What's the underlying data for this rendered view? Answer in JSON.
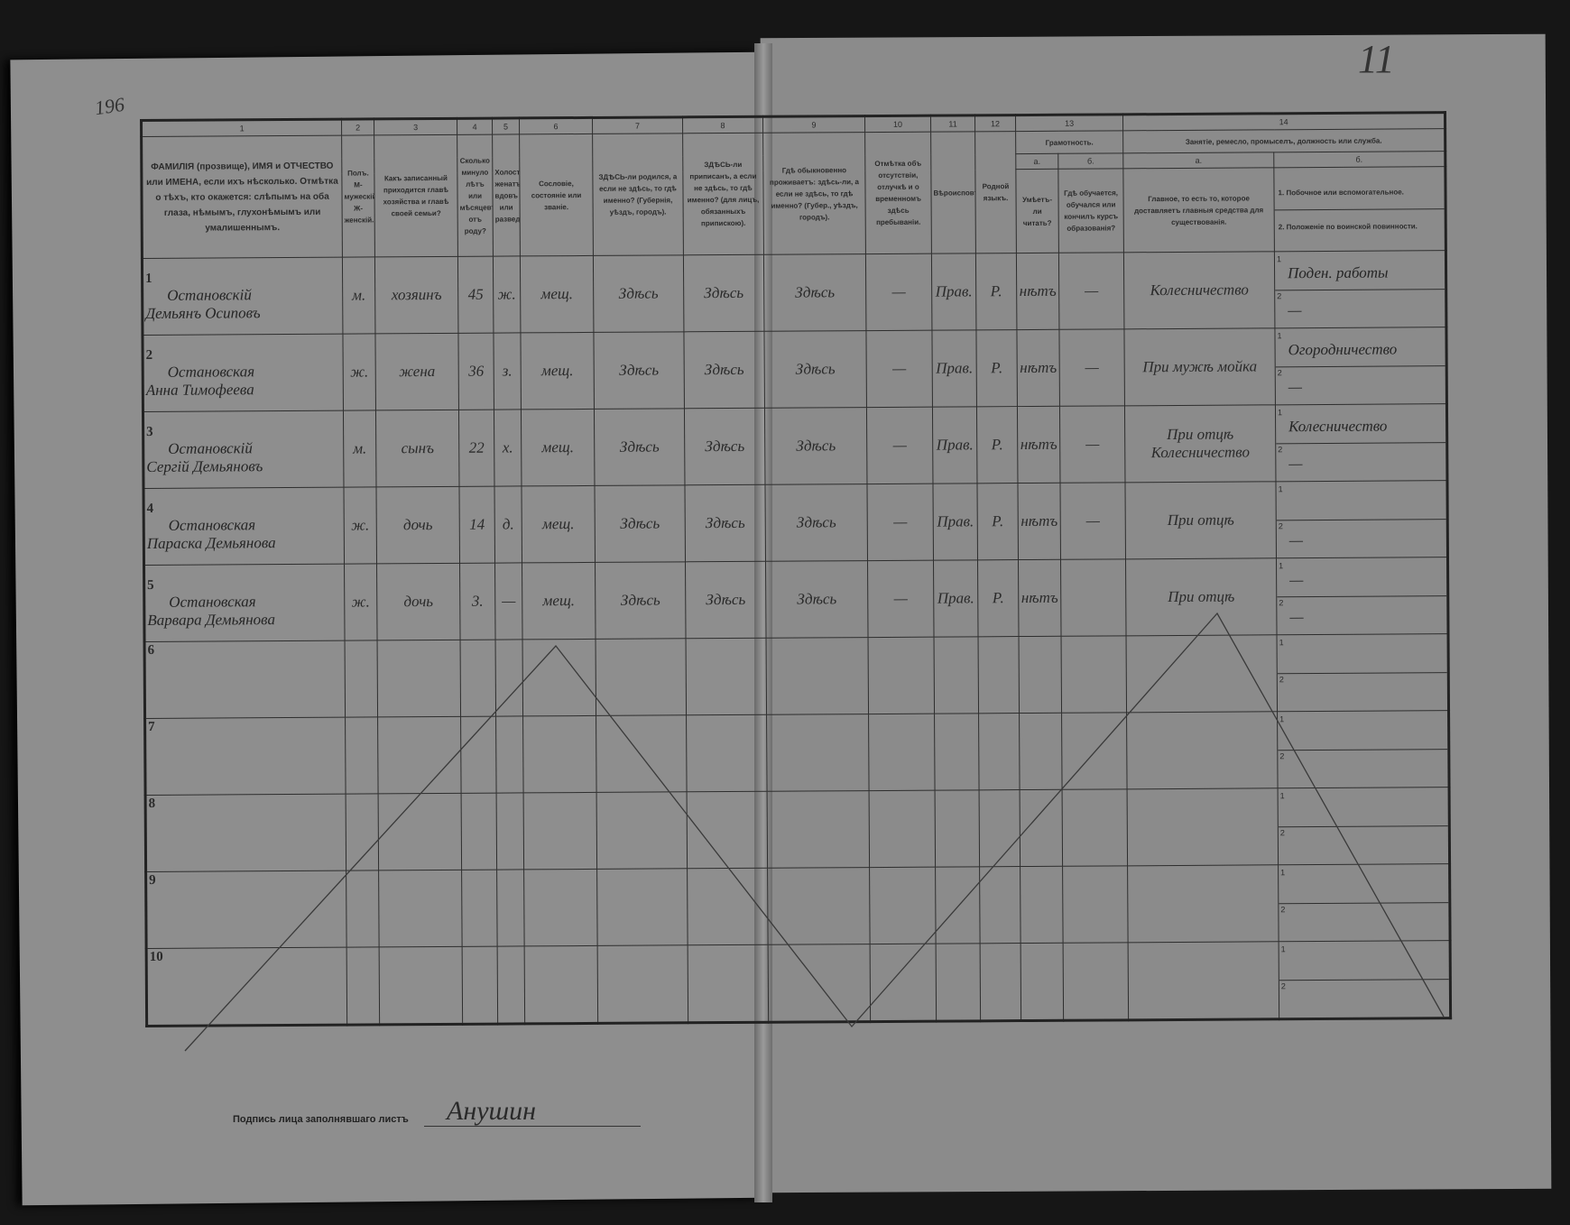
{
  "sheet_number": "11",
  "margin_number": "196",
  "headers": {
    "numbers": [
      "1",
      "2",
      "3",
      "4",
      "5",
      "6",
      "7",
      "8",
      "9",
      "10",
      "11",
      "12",
      "13",
      "14"
    ],
    "col1": "ФАМИЛІЯ (прозвище), ИМЯ и ОТЧЕСТВО или ИМЕНА, если ихъ нѣсколько. Отмѣтка о тѣхъ, кто окажется: слѣпымъ на оба глаза, нѣмымъ, глухонѣмымъ или умалишеннымъ.",
    "col2": "Полъ. М-мужескій. Ж-женскій.",
    "col3": "Какъ записанный приходится главѣ хозяйства и главѣ своей семьи?",
    "col4": "Сколько минуло лѣтъ или мѣсяцевъ отъ роду?",
    "col5": "Холостъ, женатъ, вдовъ или разведенъ.",
    "col6": "Сословіе, состояніе или званіе.",
    "col7": "ЗДѢСЬ-ли родился, а если не здѣсь, то гдѣ именно? (Губернія, уѣздъ, городъ).",
    "col8": "ЗДѢСЬ-ли приписанъ, а если не здѣсь, то гдѣ именно? (для лицъ, обязанныхъ припискою).",
    "col9": "Гдѣ обыкновенно проживаетъ: здѣсь-ли, а если не здѣсь, то гдѣ именно? (Губер., уѣздъ, городъ).",
    "col10": "Отмѣтка объ отсутствіи, отлучкѣ и о временномъ здѣсь пребываніи.",
    "col11": "Вѣроисповѣданіе.",
    "col12": "Родной языкъ.",
    "col13": "Грамотность.",
    "col13a_letter": "а.",
    "col13b_letter": "б.",
    "col13a": "Умѣетъ-ли читать?",
    "col13b": "Гдѣ обучается, обучался или кончилъ курсъ образованія?",
    "col14": "Занятіе, ремесло, промыселъ, должность или служба.",
    "col14a_letter": "а.",
    "col14b_letter": "б.",
    "col14a": "Главное, то есть то, которое доставляетъ главныя средства для существованія.",
    "col14b_1": "1. Побочное или вспомогательное.",
    "col14b_2": "2. Положеніе по воинской повинности."
  },
  "rows": [
    {
      "num": "1",
      "surname": "Остановскій",
      "given": "Демьянъ Осиповъ",
      "sex": "м.",
      "relation": "хозяинъ",
      "age": "45",
      "marital": "ж.",
      "estate": "мещ.",
      "birthplace": "Здѣсь",
      "registered": "Здѣсь",
      "residence": "Здѣсь",
      "absence": "—",
      "religion": "Прав.",
      "language": "Р.",
      "literacy": "нѣтъ",
      "education": "—",
      "occupation_main": "Колесничество",
      "occupation_side_1": "Поден. работы",
      "occupation_side_2": "—"
    },
    {
      "num": "2",
      "surname": "Остановская",
      "given": "Анна Тимофеева",
      "sex": "ж.",
      "relation": "жена",
      "age": "36",
      "marital": "з.",
      "estate": "мещ.",
      "birthplace": "Здѣсь",
      "registered": "Здѣсь",
      "residence": "Здѣсь",
      "absence": "—",
      "religion": "Прав.",
      "language": "Р.",
      "literacy": "нѣтъ",
      "education": "—",
      "occupation_main": "При мужѣ мойка",
      "occupation_side_1": "Огородничество",
      "occupation_side_2": "—"
    },
    {
      "num": "3",
      "surname": "Остановскій",
      "given": "Сергій Демьяновъ",
      "sex": "м.",
      "relation": "сынъ",
      "age": "22",
      "marital": "х.",
      "estate": "мещ.",
      "birthplace": "Здѣсь",
      "registered": "Здѣсь",
      "residence": "Здѣсь",
      "absence": "—",
      "religion": "Прав.",
      "language": "Р.",
      "literacy": "нѣтъ",
      "education": "—",
      "occupation_main": "При отцѣ Колесничество",
      "occupation_side_1": "Колесничество",
      "occupation_side_2": "—"
    },
    {
      "num": "4",
      "surname": "Остановская",
      "given": "Параска Демьянова",
      "sex": "ж.",
      "relation": "дочь",
      "age": "14",
      "marital": "д.",
      "estate": "мещ.",
      "birthplace": "Здѣсь",
      "registered": "Здѣсь",
      "residence": "Здѣсь",
      "absence": "—",
      "religion": "Прав.",
      "language": "Р.",
      "literacy": "нѣтъ",
      "education": "—",
      "occupation_main": "При отцѣ",
      "occupation_side_1": "",
      "occupation_side_2": "—"
    },
    {
      "num": "5",
      "surname": "Остановская",
      "given": "Варвара Демьянова",
      "sex": "ж.",
      "relation": "дочь",
      "age": "3.",
      "marital": "—",
      "estate": "мещ.",
      "birthplace": "Здѣсь",
      "registered": "Здѣсь",
      "residence": "Здѣсь",
      "absence": "—",
      "religion": "Прав.",
      "language": "Р.",
      "literacy": "нѣтъ",
      "education": "",
      "occupation_main": "При отцѣ",
      "occupation_side_1": "—",
      "occupation_side_2": "—"
    }
  ],
  "empty_rows": [
    "6",
    "7",
    "8",
    "9",
    "10"
  ],
  "side_indices": [
    "1",
    "2"
  ],
  "signature_label": "Подпись лица заполнявшаго листъ",
  "signature": "Анушин"
}
